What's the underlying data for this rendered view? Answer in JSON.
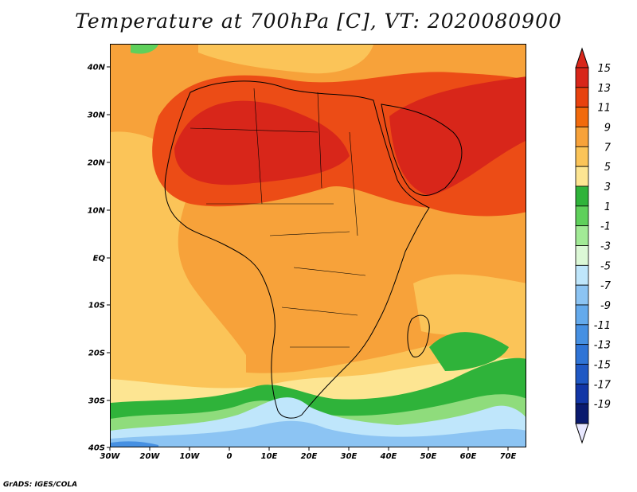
{
  "title": "Temperature at 700hPa [C], VT: 2020080900",
  "footer": "GrADS: IGES/COLA",
  "axes": {
    "lat_labels": [
      "40N",
      "30N",
      "20N",
      "10N",
      "EQ",
      "10S",
      "20S",
      "30S",
      "40S"
    ],
    "lon_labels": [
      "30W",
      "20W",
      "10W",
      "0",
      "10E",
      "20E",
      "30E",
      "40E",
      "50E",
      "60E",
      "70E"
    ]
  },
  "colorbar": {
    "labels": [
      "15",
      "13",
      "11",
      "9",
      "7",
      "5",
      "3",
      "1",
      "-1",
      "-3",
      "-5",
      "-7",
      "-9",
      "-11",
      "-13",
      "-15",
      "-17",
      "-19"
    ],
    "colors": [
      "#d8261a",
      "#e8420e",
      "#f26a0c",
      "#f7a23a",
      "#fbc458",
      "#fde592",
      "#2fb33a",
      "#5fd05b",
      "#a2ea96",
      "#dcf8d6",
      "#bfe6fb",
      "#8cc4f3",
      "#64aaec",
      "#4690e2",
      "#2f74d6",
      "#1f58c4",
      "#1236a6",
      "#0a1a6e"
    ],
    "top_arrow_color": "#d8261a",
    "bottom_arrow_color": "#e8e8ff"
  },
  "map": {
    "variable": "temperature_700hPa",
    "units": "C",
    "lon_range": [
      -30,
      75
    ],
    "lat_range": [
      -40,
      44
    ],
    "palette": {
      "very_hot": "#d8261a",
      "hot": "#ec4c16",
      "warm": "#f7a23a",
      "mild": "#fbc458",
      "cool": "#fde592",
      "green": "#2fb33a",
      "light_green": "#8fdc7c",
      "pale_blue": "#bfe6fb",
      "blue": "#8cc4f3",
      "deep_blue": "#4690e2"
    }
  }
}
